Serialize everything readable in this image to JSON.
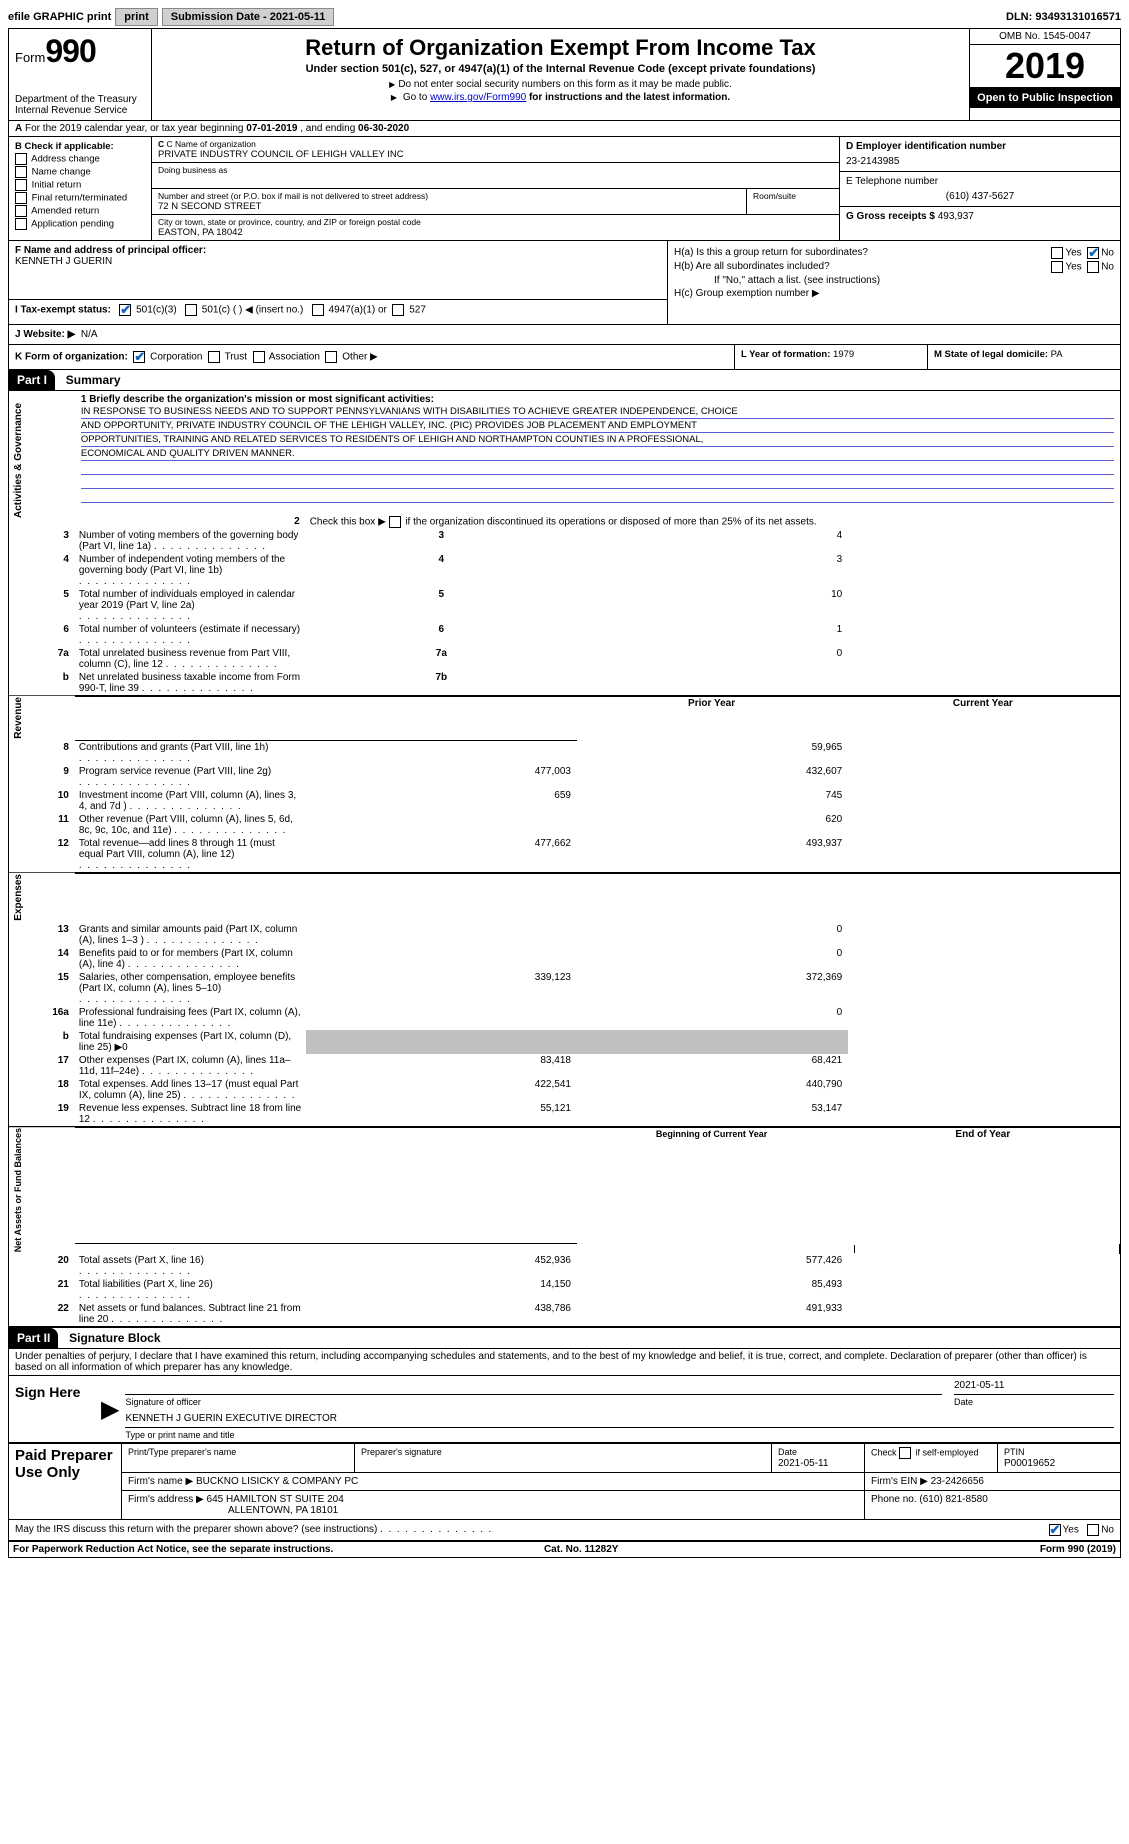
{
  "topbar": {
    "efile": "efile GRAPHIC print",
    "submission_label": "Submission Date - 2021-05-11",
    "dln": "DLN: 93493131016571"
  },
  "header": {
    "form_word": "Form",
    "form_num": "990",
    "dept": "Department of the Treasury\nInternal Revenue Service",
    "title": "Return of Organization Exempt From Income Tax",
    "subtitle": "Under section 501(c), 527, or 4947(a)(1) of the Internal Revenue Code (except private foundations)",
    "warn": "Do not enter social security numbers on this form as it may be made public.",
    "goto_pre": "Go to ",
    "goto_link": "www.irs.gov/Form990",
    "goto_post": " for instructions and the latest information.",
    "omb": "OMB No. 1545-0047",
    "year": "2019",
    "open": "Open to Public Inspection"
  },
  "rowA": {
    "label_a": "A",
    "text": "For the 2019 calendar year, or tax year beginning ",
    "begin": "07-01-2019",
    "mid": " , and ending ",
    "end": "06-30-2020"
  },
  "colB": {
    "title": "B Check if applicable:",
    "items": [
      "Address change",
      "Name change",
      "Initial return",
      "Final return/terminated",
      "Amended return",
      "Application pending"
    ]
  },
  "colC": {
    "name_label": "C Name of organization",
    "name": "PRIVATE INDUSTRY COUNCIL OF LEHIGH VALLEY INC",
    "dba_label": "Doing business as",
    "addr_label": "Number and street (or P.O. box if mail is not delivered to street address)",
    "addr": "72 N SECOND STREET",
    "room_label": "Room/suite",
    "city_label": "City or town, state or province, country, and ZIP or foreign postal code",
    "city": "EASTON, PA  18042"
  },
  "colD": {
    "d_label": "D Employer identification number",
    "d_val": "23-2143985",
    "e_label": "E Telephone number",
    "e_val": "(610) 437-5627",
    "g_label": "G Gross receipts $ ",
    "g_val": "493,937"
  },
  "rowF": {
    "label": "F Name and address of principal officer:",
    "name": "KENNETH J GUERIN"
  },
  "rowH": {
    "ha": "H(a)  Is this a group return for subordinates?",
    "hb": "H(b)  Are all subordinates included?",
    "hb_note": "If \"No,\" attach a list. (see instructions)",
    "hc": "H(c)  Group exemption number ▶",
    "yes": "Yes",
    "no": "No"
  },
  "rowI": {
    "label": "I  Tax-exempt status:",
    "o1": "501(c)(3)",
    "o2": "501(c) (   ) ◀ (insert no.)",
    "o3": "4947(a)(1) or",
    "o4": "527"
  },
  "rowJ": {
    "label": "J  Website: ▶",
    "val": "N/A"
  },
  "rowK": {
    "label": "K Form of organization:",
    "o1": "Corporation",
    "o2": "Trust",
    "o3": "Association",
    "o4": "Other ▶"
  },
  "rowL": {
    "label": "L Year of formation: ",
    "val": "1979"
  },
  "rowM": {
    "label": "M State of legal domicile: ",
    "val": "PA"
  },
  "part1": {
    "num": "Part I",
    "title": "Summary"
  },
  "mission": {
    "q": "1  Briefly describe the organization's mission or most significant activities:",
    "lines": [
      "IN RESPONSE TO BUSINESS NEEDS AND TO SUPPORT PENNSYLVANIANS WITH DISABILITIES TO ACHIEVE GREATER INDEPENDENCE, CHOICE",
      "AND OPPORTUNITY, PRIVATE INDUSTRY COUNCIL OF THE LEHIGH VALLEY, INC. (PIC) PROVIDES JOB PLACEMENT AND EMPLOYMENT",
      "OPPORTUNITIES, TRAINING AND RELATED SERVICES TO RESIDENTS OF LEHIGH AND NORTHAMPTON COUNTIES IN A PROFESSIONAL,",
      "ECONOMICAL AND QUALITY DRIVEN MANNER."
    ]
  },
  "gov": {
    "tab": "Activities & Governance",
    "l2": "Check this box ▶       if the organization discontinued its operations or disposed of more than 25% of its net assets.",
    "rows": [
      {
        "n": "3",
        "d": "Number of voting members of the governing body (Part VI, line 1a)",
        "box": "3",
        "v": "4"
      },
      {
        "n": "4",
        "d": "Number of independent voting members of the governing body (Part VI, line 1b)",
        "box": "4",
        "v": "3"
      },
      {
        "n": "5",
        "d": "Total number of individuals employed in calendar year 2019 (Part V, line 2a)",
        "box": "5",
        "v": "10"
      },
      {
        "n": "6",
        "d": "Total number of volunteers (estimate if necessary)",
        "box": "6",
        "v": "1"
      },
      {
        "n": "7a",
        "d": "Total unrelated business revenue from Part VIII, column (C), line 12",
        "box": "7a",
        "v": "0"
      },
      {
        "n": "b",
        "d": "Net unrelated business taxable income from Form 990-T, line 39",
        "box": "7b",
        "v": ""
      }
    ]
  },
  "rev": {
    "tab": "Revenue",
    "hdr_prior": "Prior Year",
    "hdr_curr": "Current Year",
    "rows": [
      {
        "n": "8",
        "d": "Contributions and grants (Part VIII, line 1h)",
        "p": "",
        "c": "59,965"
      },
      {
        "n": "9",
        "d": "Program service revenue (Part VIII, line 2g)",
        "p": "477,003",
        "c": "432,607"
      },
      {
        "n": "10",
        "d": "Investment income (Part VIII, column (A), lines 3, 4, and 7d )",
        "p": "659",
        "c": "745"
      },
      {
        "n": "11",
        "d": "Other revenue (Part VIII, column (A), lines 5, 6d, 8c, 9c, 10c, and 11e)",
        "p": "",
        "c": "620"
      },
      {
        "n": "12",
        "d": "Total revenue—add lines 8 through 11 (must equal Part VIII, column (A), line 12)",
        "p": "477,662",
        "c": "493,937"
      }
    ]
  },
  "exp": {
    "tab": "Expenses",
    "rows": [
      {
        "n": "13",
        "d": "Grants and similar amounts paid (Part IX, column (A), lines 1–3 )",
        "p": "",
        "c": "0"
      },
      {
        "n": "14",
        "d": "Benefits paid to or for members (Part IX, column (A), line 4)",
        "p": "",
        "c": "0"
      },
      {
        "n": "15",
        "d": "Salaries, other compensation, employee benefits (Part IX, column (A), lines 5–10)",
        "p": "339,123",
        "c": "372,369"
      },
      {
        "n": "16a",
        "d": "Professional fundraising fees (Part IX, column (A), line 11e)",
        "p": "",
        "c": "0"
      },
      {
        "n": "b",
        "d": "Total fundraising expenses (Part IX, column (D), line 25) ▶0",
        "p": "",
        "c": "",
        "shade": true
      },
      {
        "n": "17",
        "d": "Other expenses (Part IX, column (A), lines 11a–11d, 11f–24e)",
        "p": "83,418",
        "c": "68,421"
      },
      {
        "n": "18",
        "d": "Total expenses. Add lines 13–17 (must equal Part IX, column (A), line 25)",
        "p": "422,541",
        "c": "440,790"
      },
      {
        "n": "19",
        "d": "Revenue less expenses. Subtract line 18 from line 12",
        "p": "55,121",
        "c": "53,147"
      }
    ]
  },
  "net": {
    "tab": "Net Assets or Fund Balances",
    "hdr_beg": "Beginning of Current Year",
    "hdr_end": "End of Year",
    "rows": [
      {
        "n": "20",
        "d": "Total assets (Part X, line 16)",
        "p": "452,936",
        "c": "577,426"
      },
      {
        "n": "21",
        "d": "Total liabilities (Part X, line 26)",
        "p": "14,150",
        "c": "85,493"
      },
      {
        "n": "22",
        "d": "Net assets or fund balances. Subtract line 21 from line 20",
        "p": "438,786",
        "c": "491,933"
      }
    ]
  },
  "part2": {
    "num": "Part II",
    "title": "Signature Block"
  },
  "sig": {
    "perjury": "Under penalties of perjury, I declare that I have examined this return, including accompanying schedules and statements, and to the best of my knowledge and belief, it is true, correct, and complete. Declaration of preparer (other than officer) is based on all information of which preparer has any knowledge.",
    "sign_here": "Sign Here",
    "sig_officer": "Signature of officer",
    "date_val": "2021-05-11",
    "date": "Date",
    "name_title": "KENNETH J GUERIN  EXECUTIVE DIRECTOR",
    "type_name": "Type or print name and title"
  },
  "paid": {
    "title": "Paid Preparer Use Only",
    "print_name": "Print/Type preparer's name",
    "prep_sig": "Preparer's signature",
    "date_l": "Date",
    "date_v": "2021-05-11",
    "check_self": "Check         if self-employed",
    "ptin_l": "PTIN",
    "ptin_v": "P00019652",
    "firm_name_l": "Firm's name    ▶",
    "firm_name": "BUCKNO LISICKY & COMPANY PC",
    "firm_ein_l": "Firm's EIN ▶ ",
    "firm_ein": "23-2426656",
    "firm_addr_l": "Firm's address ▶",
    "firm_addr1": "645 HAMILTON ST SUITE 204",
    "firm_addr2": "ALLENTOWN, PA  18101",
    "phone_l": "Phone no. ",
    "phone": "(610) 821-8580"
  },
  "discuss": {
    "q": "May the IRS discuss this return with the preparer shown above? (see instructions)",
    "yes": "Yes",
    "no": "No"
  },
  "footer": {
    "left": "For Paperwork Reduction Act Notice, see the separate instructions.",
    "mid": "Cat. No. 11282Y",
    "right_a": "Form ",
    "right_b": "990",
    "right_c": " (2019)"
  }
}
